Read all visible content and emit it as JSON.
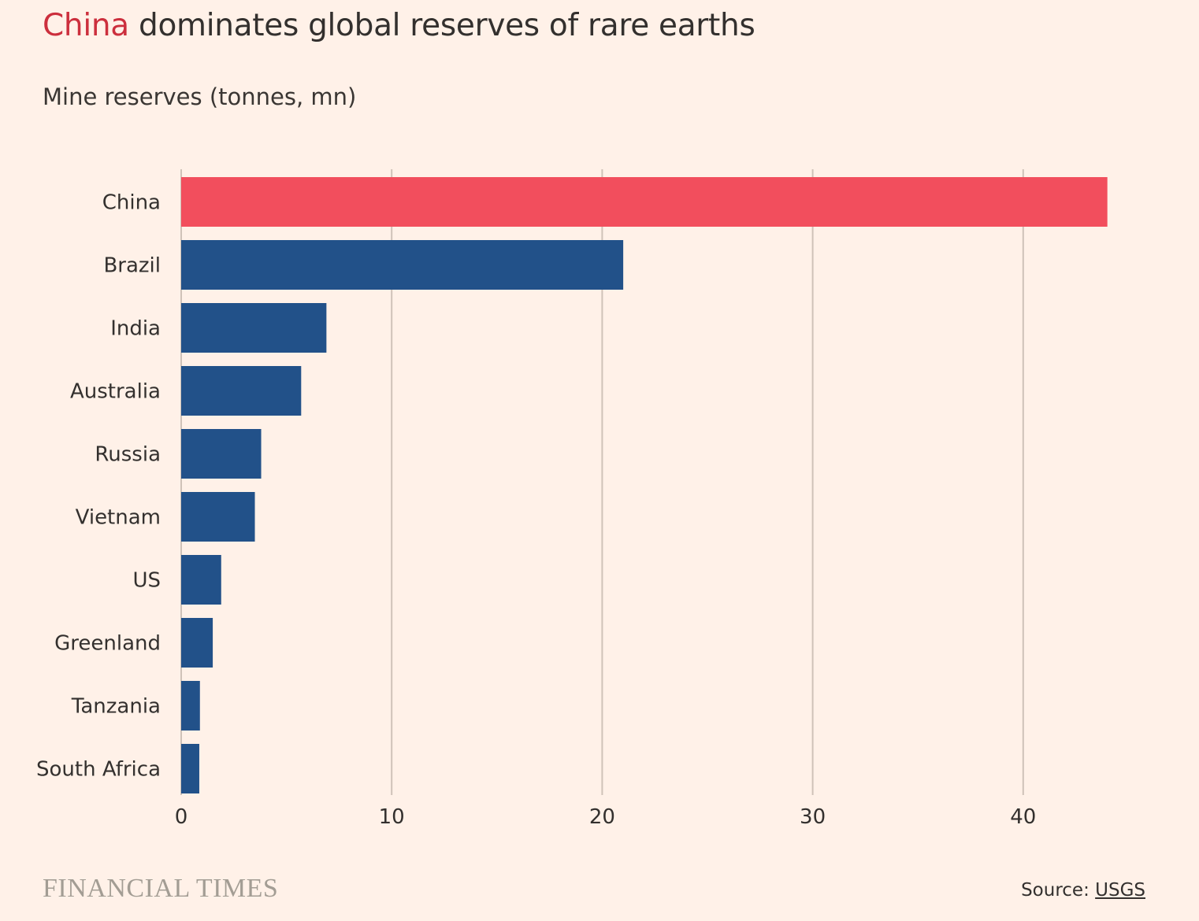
{
  "title": {
    "highlight": "China",
    "rest": " dominates global reserves of rare earths"
  },
  "subtitle": "Mine reserves (tonnes, mn)",
  "colors": {
    "background": "#fff1e8",
    "highlight_bar": "#f24e5d",
    "bar": "#225189",
    "gridline": "#cfc2b8",
    "title_highlight": "#cc2f3d"
  },
  "chart_data": {
    "type": "bar",
    "orientation": "horizontal",
    "title": "China dominates global reserves of rare earths",
    "subtitle": "Mine reserves (tonnes, mn)",
    "categories": [
      "China",
      "Brazil",
      "India",
      "Australia",
      "Russia",
      "Vietnam",
      "US",
      "Greenland",
      "Tanzania",
      "South Africa"
    ],
    "values": [
      44,
      21,
      6.9,
      5.7,
      3.8,
      3.5,
      1.9,
      1.5,
      0.89,
      0.86
    ],
    "highlight": "China",
    "xlim": [
      0,
      44
    ],
    "xticks": [
      0,
      10,
      20,
      30,
      40
    ],
    "grid": true,
    "xlabel": "",
    "ylabel": ""
  },
  "footer": {
    "brand": "FINANCIAL TIMES",
    "source_label": "Source: ",
    "source_link": "USGS"
  }
}
